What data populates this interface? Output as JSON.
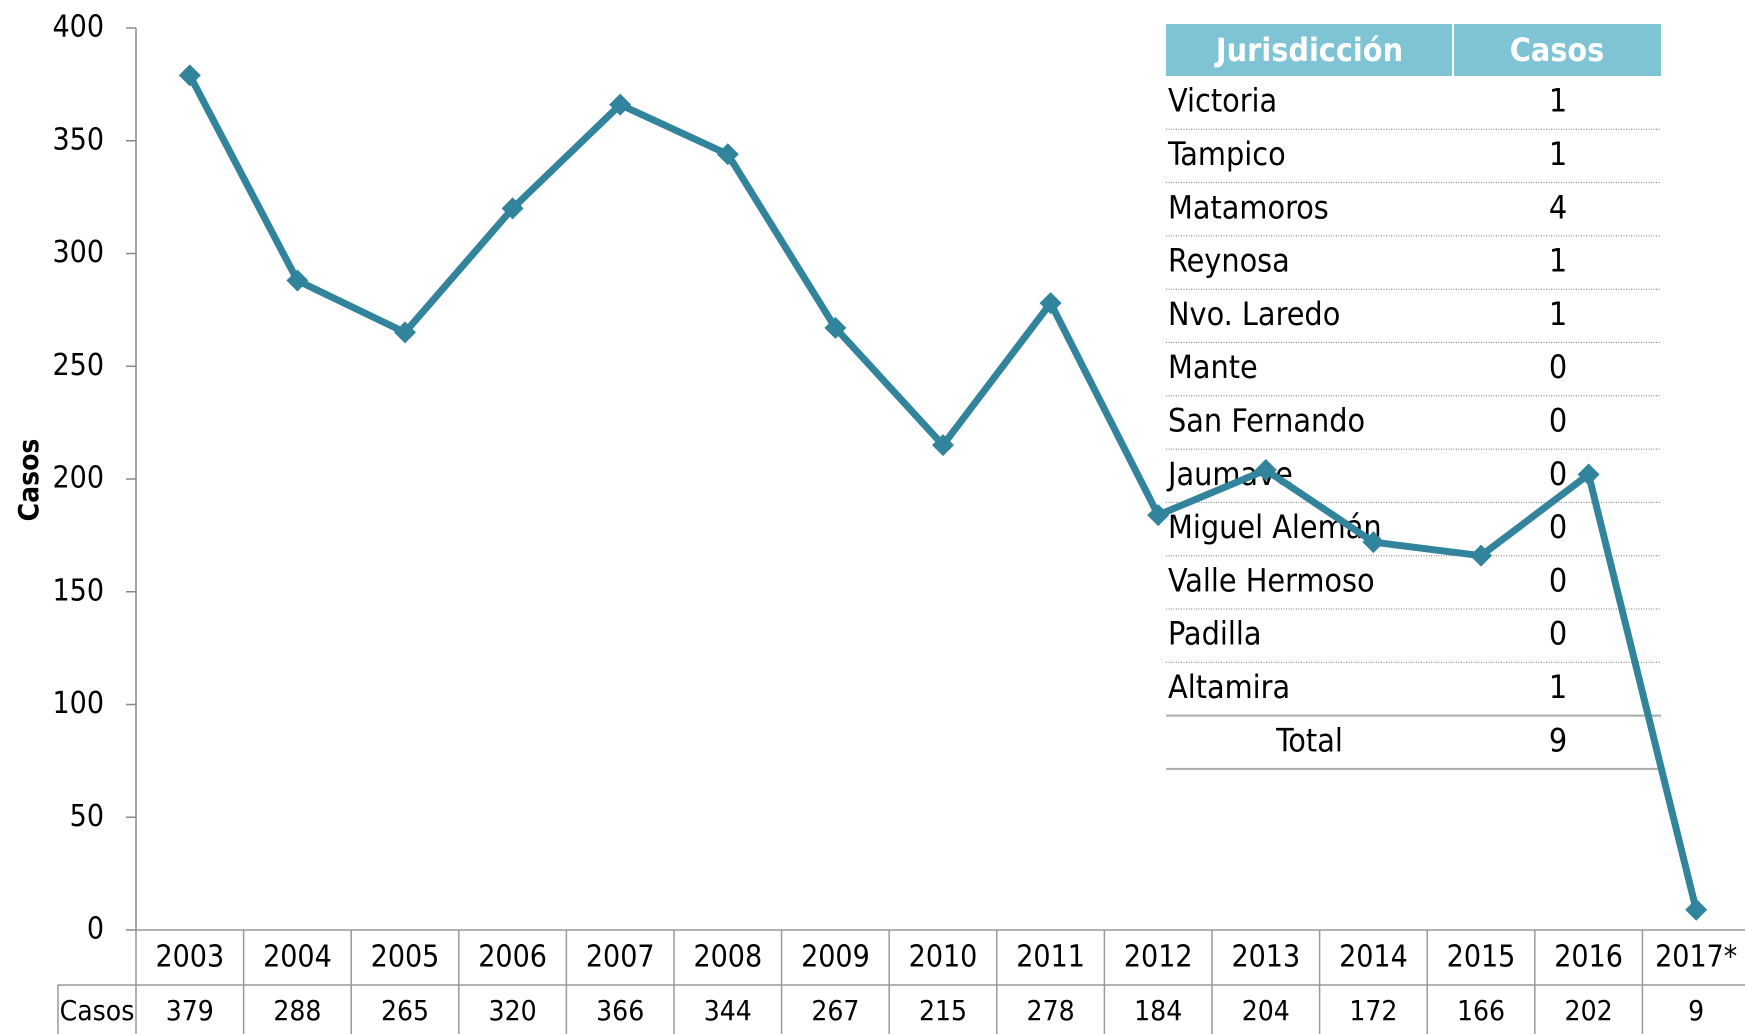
{
  "chart_data": {
    "type": "line",
    "y_label": "Casos",
    "table_row_label": "Casos",
    "categories": [
      "2003",
      "2004",
      "2005",
      "2006",
      "2007",
      "2008",
      "2009",
      "2010",
      "2011",
      "2012",
      "2013",
      "2014",
      "2015",
      "2016",
      "2017*"
    ],
    "values": [
      379,
      288,
      265,
      320,
      366,
      344,
      267,
      215,
      278,
      184,
      204,
      172,
      166,
      202,
      9
    ],
    "color": "#31849b",
    "ylim": [
      0,
      400
    ],
    "yticks": [
      0,
      50,
      100,
      150,
      200,
      250,
      300,
      350,
      400
    ]
  },
  "jurisdiction_table": {
    "columns": [
      "Jurisdicción",
      "Casos"
    ],
    "rows": [
      [
        "Victoria",
        1
      ],
      [
        "Tampico",
        1
      ],
      [
        "Matamoros",
        4
      ],
      [
        "Reynosa",
        1
      ],
      [
        "Nvo. Laredo",
        1
      ],
      [
        "Mante",
        0
      ],
      [
        "San Fernando",
        0
      ],
      [
        "Jaumave",
        0
      ],
      [
        "Miguel Alemán",
        0
      ],
      [
        "Valle Hermoso",
        0
      ],
      [
        "Padilla",
        0
      ],
      [
        "Altamira",
        1
      ]
    ],
    "total": [
      "Total",
      9
    ]
  }
}
